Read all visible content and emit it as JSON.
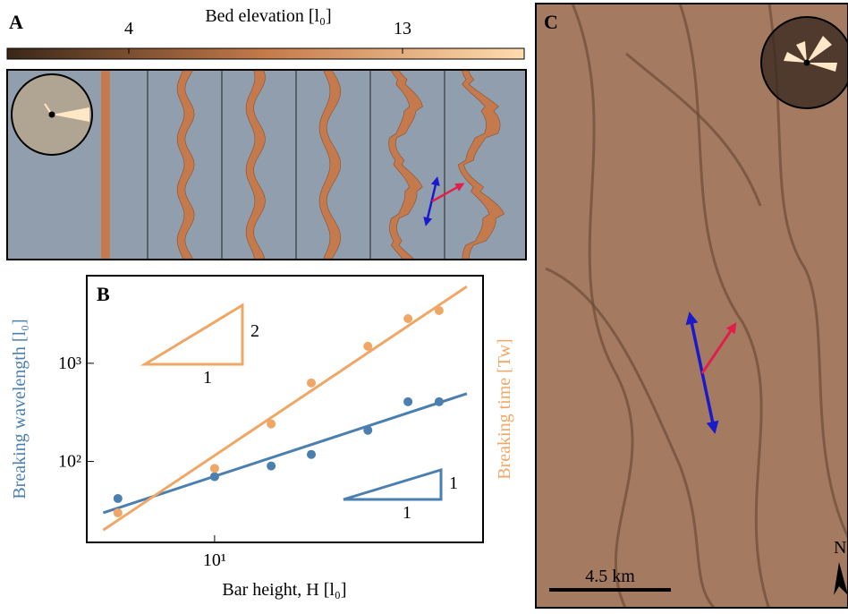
{
  "panel_a": {
    "label": "A",
    "colorbar": {
      "title": "Bed elevation [l₀]",
      "lim": [
        0,
        17
      ],
      "ticks": [
        4,
        13
      ]
    }
  },
  "chart_data": {
    "type": "scatter",
    "label": "B",
    "xlabel": "Bar height, H [l₀]",
    "ylabel": "Breaking wavelength [l₀]",
    "y2label": "Breaking time [Tw]",
    "log_x": true,
    "log_y": true,
    "xlim": [
      4,
      68.5
    ],
    "xticks": [
      {
        "value": 10,
        "label": "10¹"
      }
    ],
    "ylim": [
      15,
      7800
    ],
    "yticks": [
      {
        "value": 100,
        "label": "10²"
      },
      {
        "value": 1000,
        "label": "10³"
      }
    ],
    "y2lim": [
      15,
      7800
    ],
    "series": [
      {
        "style": "scatter",
        "color": "#4a7fb0",
        "x": [
          5,
          10,
          15,
          20,
          30,
          40,
          50
        ],
        "values": [
          42,
          70,
          90,
          118,
          208,
          406,
          406
        ]
      },
      {
        "style": "scatter",
        "color": "#f0a766",
        "axis": "y2",
        "x": [
          5,
          10,
          15,
          20,
          30,
          40,
          50
        ],
        "values": [
          30,
          85,
          241,
          631,
          1490,
          2850,
          3440
        ]
      },
      {
        "style": "line",
        "color": "#4a7fb0",
        "x": [
          4.5,
          61
        ],
        "values": [
          30,
          491
        ]
      },
      {
        "style": "line",
        "color": "#f0a766",
        "axis": "y2",
        "x": [
          4.5,
          61
        ],
        "values": [
          20,
          6050
        ]
      }
    ],
    "annotations": [
      {
        "rise": "2",
        "run": "1",
        "color": "#f0a766"
      },
      {
        "rise": "1",
        "run": "1",
        "color": "#4a7fb0"
      }
    ]
  },
  "panel_c": {
    "label": "C",
    "scale_bar": "4.5 km",
    "north": "N"
  }
}
